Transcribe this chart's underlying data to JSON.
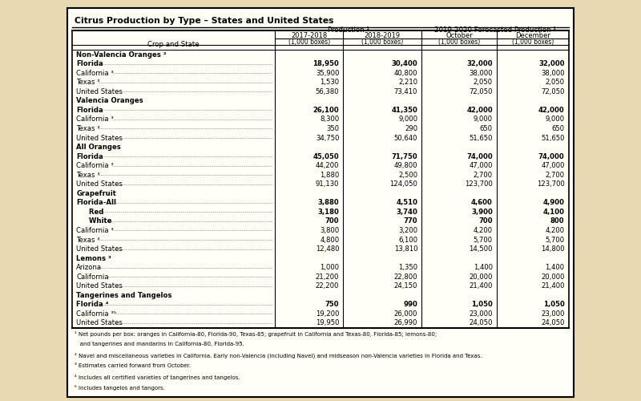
{
  "title": "Citrus Production by Type – States and United States",
  "col_headers": [
    "Crop and State",
    "2017-2018",
    "2018-2019",
    "October",
    "December"
  ],
  "col_subheaders": [
    "",
    "(1,000 boxes)",
    "(1,000 boxes)",
    "(1,000 boxes)",
    "(1,000 boxes)"
  ],
  "group_headers": [
    "Production ¹",
    "2019-2020 Forecasted Production ¹"
  ],
  "rows": [
    {
      "label": "Non-Valencia Oranges ²",
      "vals": [
        "",
        "",
        "",
        ""
      ],
      "bold": false,
      "header": true,
      "indent": 0
    },
    {
      "label": "Florida",
      "vals": [
        "18,950",
        "30,400",
        "32,000",
        "32,000"
      ],
      "bold": true,
      "header": false,
      "indent": 0
    },
    {
      "label": "California ³",
      "vals": [
        "35,900",
        "40,800",
        "38,000",
        "38,000"
      ],
      "bold": false,
      "header": false,
      "indent": 0
    },
    {
      "label": "Texas ³",
      "vals": [
        "1,530",
        "2,210",
        "2,050",
        "2,050"
      ],
      "bold": false,
      "header": false,
      "indent": 0
    },
    {
      "label": "United States",
      "vals": [
        "56,380",
        "73,410",
        "72,050",
        "72,050"
      ],
      "bold": false,
      "header": false,
      "indent": 0
    },
    {
      "label": "Valencia Oranges",
      "vals": [
        "",
        "",
        "",
        ""
      ],
      "bold": false,
      "header": true,
      "indent": 0
    },
    {
      "label": "Florida",
      "vals": [
        "26,100",
        "41,350",
        "42,000",
        "42,000"
      ],
      "bold": true,
      "header": false,
      "indent": 0
    },
    {
      "label": "California ³",
      "vals": [
        "8,300",
        "9,000",
        "9,000",
        "9,000"
      ],
      "bold": false,
      "header": false,
      "indent": 0
    },
    {
      "label": "Texas ³",
      "vals": [
        "350",
        "290",
        "650",
        "650"
      ],
      "bold": false,
      "header": false,
      "indent": 0
    },
    {
      "label": "United States",
      "vals": [
        "34,750",
        "50,640",
        "51,650",
        "51,650"
      ],
      "bold": false,
      "header": false,
      "indent": 0
    },
    {
      "label": "All Oranges",
      "vals": [
        "",
        "",
        "",
        ""
      ],
      "bold": false,
      "header": true,
      "indent": 0
    },
    {
      "label": "Florida",
      "vals": [
        "45,050",
        "71,750",
        "74,000",
        "74,000"
      ],
      "bold": true,
      "header": false,
      "indent": 0
    },
    {
      "label": "California ³",
      "vals": [
        "44,200",
        "49,800",
        "47,000",
        "47,000"
      ],
      "bold": false,
      "header": false,
      "indent": 0
    },
    {
      "label": "Texas ³",
      "vals": [
        "1,880",
        "2,500",
        "2,700",
        "2,700"
      ],
      "bold": false,
      "header": false,
      "indent": 0
    },
    {
      "label": "United States",
      "vals": [
        "91,130",
        "124,050",
        "123,700",
        "123,700"
      ],
      "bold": false,
      "header": false,
      "indent": 0
    },
    {
      "label": "Grapefruit",
      "vals": [
        "",
        "",
        "",
        ""
      ],
      "bold": false,
      "header": true,
      "indent": 0
    },
    {
      "label": "Florida-All",
      "vals": [
        "3,880",
        "4,510",
        "4,600",
        "4,900"
      ],
      "bold": true,
      "header": false,
      "indent": 0
    },
    {
      "label": "  Red",
      "vals": [
        "3,180",
        "3,740",
        "3,900",
        "4,100"
      ],
      "bold": true,
      "header": false,
      "indent": 1
    },
    {
      "label": "  White",
      "vals": [
        "700",
        "770",
        "700",
        "800"
      ],
      "bold": true,
      "header": false,
      "indent": 1
    },
    {
      "label": "California ³",
      "vals": [
        "3,800",
        "3,200",
        "4,200",
        "4,200"
      ],
      "bold": false,
      "header": false,
      "indent": 0
    },
    {
      "label": "Texas ³",
      "vals": [
        "4,800",
        "6,100",
        "5,700",
        "5,700"
      ],
      "bold": false,
      "header": false,
      "indent": 0
    },
    {
      "label": "United States",
      "vals": [
        "12,480",
        "13,810",
        "14,500",
        "14,800"
      ],
      "bold": false,
      "header": false,
      "indent": 0
    },
    {
      "label": "Lemons ³",
      "vals": [
        "",
        "",
        "",
        ""
      ],
      "bold": false,
      "header": true,
      "indent": 0
    },
    {
      "label": "Arizona",
      "vals": [
        "1,000",
        "1,350",
        "1,400",
        "1,400"
      ],
      "bold": false,
      "header": false,
      "indent": 0
    },
    {
      "label": "California",
      "vals": [
        "21,200",
        "22,800",
        "20,000",
        "20,000"
      ],
      "bold": false,
      "header": false,
      "indent": 0
    },
    {
      "label": "United States",
      "vals": [
        "22,200",
        "24,150",
        "21,400",
        "21,400"
      ],
      "bold": false,
      "header": false,
      "indent": 0
    },
    {
      "label": "Tangerines and Tangelos",
      "vals": [
        "",
        "",
        "",
        ""
      ],
      "bold": false,
      "header": true,
      "indent": 0
    },
    {
      "label": "Florida ⁴",
      "vals": [
        "750",
        "990",
        "1,050",
        "1,050"
      ],
      "bold": true,
      "header": false,
      "indent": 0
    },
    {
      "label": "California ³⁵",
      "vals": [
        "19,200",
        "26,000",
        "23,000",
        "23,000"
      ],
      "bold": false,
      "header": false,
      "indent": 0
    },
    {
      "label": "United States",
      "vals": [
        "19,950",
        "26,990",
        "24,050",
        "24,050"
      ],
      "bold": false,
      "header": false,
      "indent": 0
    }
  ],
  "footnotes": [
    "¹ Net pounds per box: oranges in California-80, Florida-90, Texas-85; grapefruit in California and Texas-80, Florida-85; lemons-80;",
    "   and tangerines and mandarins in California-80, Florida-95.",
    "² Navel and miscellaneous varieties in California. Early non-Valencia (including Navel) and midseason non-Valencia varieties in Florida and Texas.",
    "³ Estimates carried forward from October.",
    "⁴ Includes all certified varieties of tangerines and tangelos.",
    "⁵ Includes tangelos and tangors."
  ],
  "bg_color": "#FFFFF8",
  "outer_bg": "#E8D9B0",
  "border_color": "#000000"
}
